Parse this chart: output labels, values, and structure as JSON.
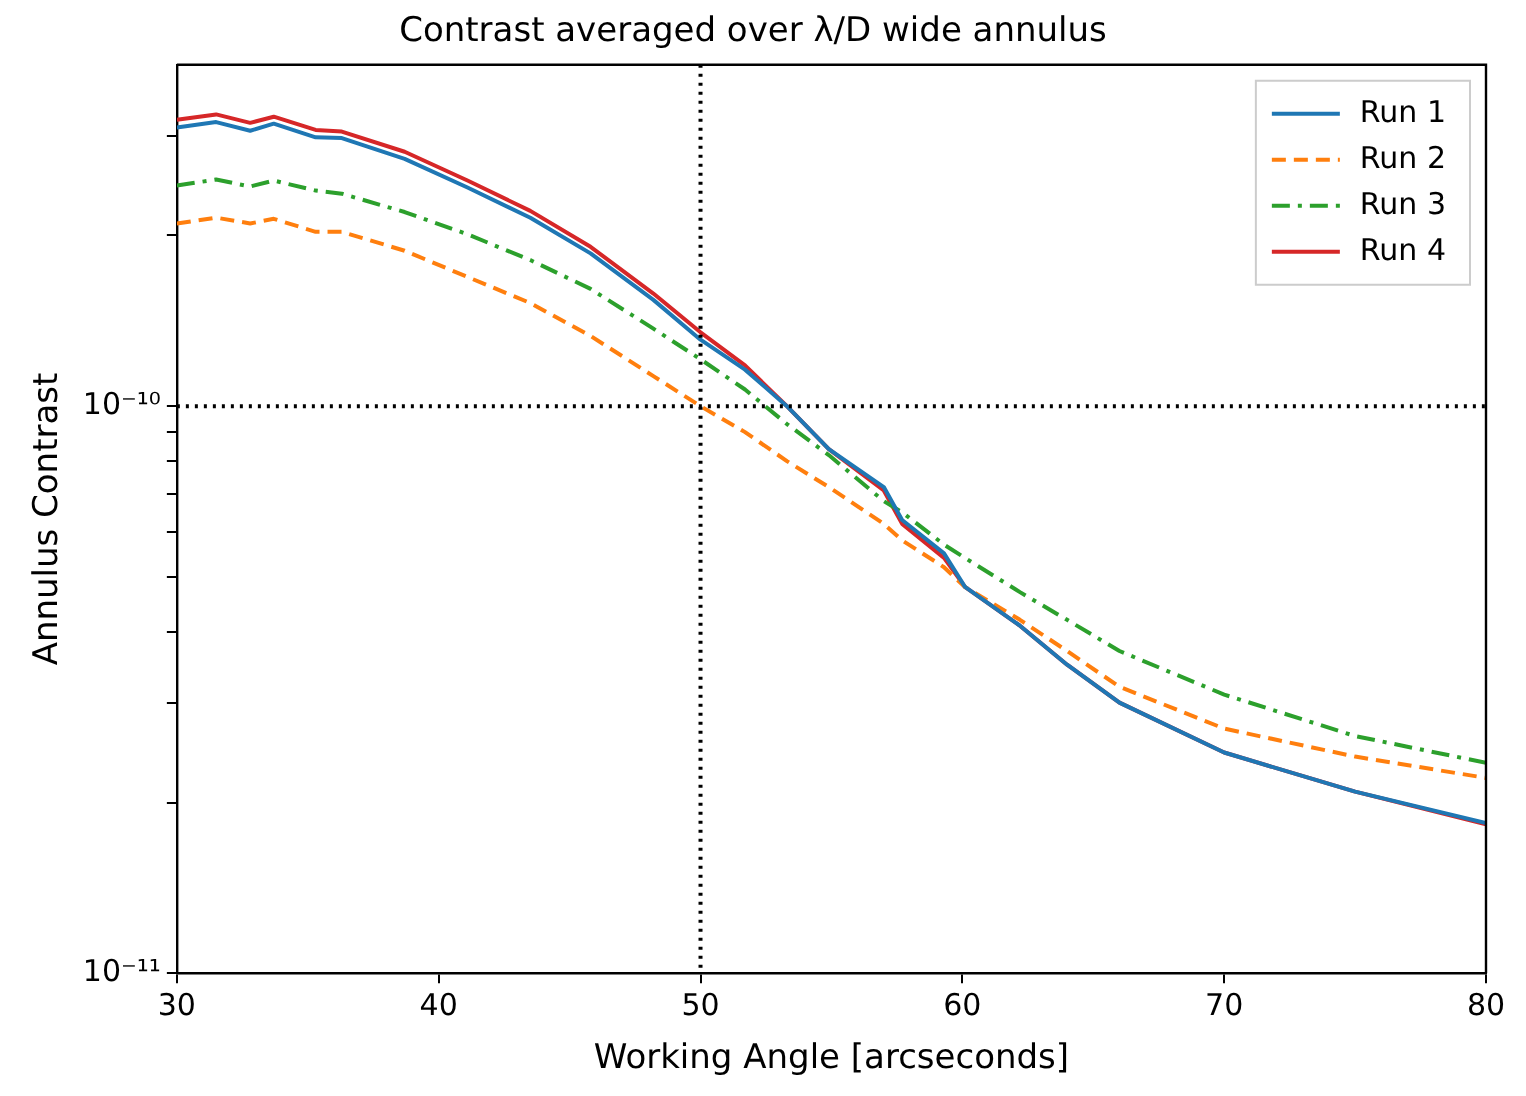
{
  "chart_data": {
    "type": "line",
    "title": "Contrast averaged over λ/D wide annulus",
    "xlabel": "Working Angle [arcseconds]",
    "ylabel": "Annulus Contrast",
    "x": [
      30,
      31.5,
      32.8,
      33.7,
      35.3,
      36.3,
      38.7,
      41.1,
      43.5,
      45.8,
      48.2,
      50,
      51.7,
      53.3,
      54.9,
      57,
      57.7,
      59.3,
      60.1,
      62.2,
      64,
      66,
      70,
      75,
      80
    ],
    "series": [
      {
        "name": "Run 1",
        "color": "#1f77b4",
        "line_style": "solid",
        "values": [
          3.1e-10,
          3.17e-10,
          3.06e-10,
          3.15e-10,
          2.98e-10,
          2.97e-10,
          2.73e-10,
          2.43e-10,
          2.15e-10,
          1.86e-10,
          1.54e-10,
          1.31e-10,
          1.16e-10,
          1e-10,
          8.4e-11,
          7.2e-11,
          6.3e-11,
          5.5e-11,
          4.8e-11,
          4.1e-11,
          3.5e-11,
          3e-11,
          2.45e-11,
          2.09e-11,
          1.84e-11
        ]
      },
      {
        "name": "Run 2",
        "color": "#ff7f0e",
        "line_style": "dashed",
        "values": [
          2.1e-10,
          2.15e-10,
          2.1e-10,
          2.14e-10,
          2.03e-10,
          2.03e-10,
          1.88e-10,
          1.69e-10,
          1.52e-10,
          1.33e-10,
          1.13e-10,
          1e-10,
          9e-11,
          8e-11,
          7.2e-11,
          6.2e-11,
          5.8e-11,
          5.2e-11,
          4.8e-11,
          4.2e-11,
          3.7e-11,
          3.2e-11,
          2.7e-11,
          2.41e-11,
          2.21e-11
        ]
      },
      {
        "name": "Run 3",
        "color": "#2ca02c",
        "line_style": "dashdot",
        "values": [
          2.45e-10,
          2.51e-10,
          2.44e-10,
          2.5e-10,
          2.4e-10,
          2.37e-10,
          2.2e-10,
          2.01e-10,
          1.81e-10,
          1.61e-10,
          1.37e-10,
          1.21e-10,
          1.07e-10,
          9.3e-11,
          8.2e-11,
          6.8e-11,
          6.5e-11,
          5.7e-11,
          5.4e-11,
          4.7e-11,
          4.2e-11,
          3.7e-11,
          3.1e-11,
          2.62e-11,
          2.35e-11
        ]
      },
      {
        "name": "Run 4",
        "color": "#d62728",
        "line_style": "solid",
        "values": [
          3.2e-10,
          3.27e-10,
          3.16e-10,
          3.24e-10,
          3.07e-10,
          3.05e-10,
          2.81e-10,
          2.5e-10,
          2.21e-10,
          1.91e-10,
          1.58e-10,
          1.35e-10,
          1.18e-10,
          1e-10,
          8.4e-11,
          7.1e-11,
          6.2e-11,
          5.4e-11,
          4.8e-11,
          4.1e-11,
          3.5e-11,
          3e-11,
          2.45e-11,
          2.09e-11,
          1.83e-11
        ]
      }
    ],
    "xlim": [
      30,
      80
    ],
    "xticks": [
      30,
      40,
      50,
      60,
      70,
      80
    ],
    "ylim": [
      1e-11,
      4e-10
    ],
    "log": true,
    "yticks": [
      {
        "value": 1e-11,
        "label": "10⁻¹¹"
      },
      {
        "value": 2e-11,
        "label": null
      },
      {
        "value": 3e-11,
        "label": null
      },
      {
        "value": 4e-11,
        "label": null
      },
      {
        "value": 5e-11,
        "label": null
      },
      {
        "value": 6e-11,
        "label": null
      },
      {
        "value": 7e-11,
        "label": null
      },
      {
        "value": 8e-11,
        "label": null
      },
      {
        "value": 9e-11,
        "label": null
      },
      {
        "value": 1e-10,
        "label": "10⁻¹⁰"
      },
      {
        "value": 2e-10,
        "label": null
      },
      {
        "value": 3e-10,
        "label": null
      }
    ],
    "ref_lines": [
      {
        "axis": "x",
        "value": 50,
        "color": "#000000",
        "line_style": "dotted"
      },
      {
        "axis": "y",
        "value": 1e-10,
        "color": "#000000",
        "line_style": "dotted"
      }
    ],
    "grid": false,
    "legend": "top right",
    "marker": "none"
  }
}
